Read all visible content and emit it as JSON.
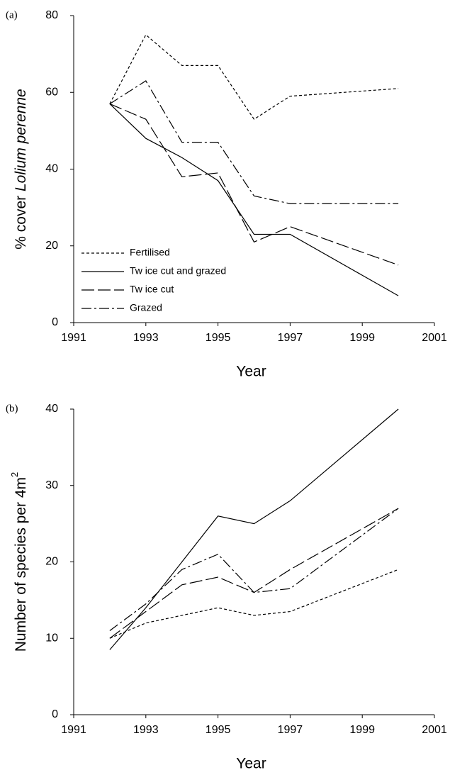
{
  "chart_data": [
    {
      "type": "line",
      "panel_label": "(a)",
      "xlabel": "Year",
      "ylabel": [
        "% cover ",
        "Lolium perenne"
      ],
      "x": [
        1992,
        1993,
        1994,
        1995,
        1996,
        1997,
        2000
      ],
      "xlim": [
        1991,
        2001
      ],
      "xticks": [
        1991,
        1993,
        1995,
        1997,
        1999,
        2001
      ],
      "ylim": [
        0,
        80
      ],
      "yticks": [
        0,
        20,
        40,
        60,
        80
      ],
      "legend": "lower left",
      "series": [
        {
          "name": "Fertilised",
          "color": "#000000",
          "dash": "4,3",
          "values": [
            57,
            75,
            67,
            67,
            53,
            59,
            61
          ]
        },
        {
          "name": "Tw ice cut and grazed",
          "color": "#000000",
          "dash": "none",
          "values": [
            57,
            48,
            43,
            37,
            23,
            23,
            7
          ]
        },
        {
          "name": "Tw ice cut",
          "color": "#000000",
          "dash": "18,5",
          "values": [
            57,
            53,
            38,
            39,
            21,
            25,
            15
          ]
        },
        {
          "name": "Grazed",
          "color": "#000000",
          "dash": "14,4,3,4",
          "values": [
            57,
            63,
            47,
            47,
            33,
            31,
            31
          ]
        }
      ]
    },
    {
      "type": "line",
      "panel_label": "(b)",
      "xlabel": "Year",
      "ylabel": [
        "Number of species per 4m",
        "2"
      ],
      "x": [
        1992,
        1993,
        1994,
        1995,
        1996,
        1997,
        2000
      ],
      "xlim": [
        1991,
        2001
      ],
      "xticks": [
        1991,
        1993,
        1995,
        1997,
        1999,
        2001
      ],
      "ylim": [
        0,
        40
      ],
      "yticks": [
        0,
        10,
        20,
        30,
        40
      ],
      "series": [
        {
          "color": "#000000",
          "dash": "4,3",
          "values": [
            10,
            12,
            13,
            14,
            13,
            13.5,
            19
          ]
        },
        {
          "color": "#000000",
          "dash": "none",
          "values": [
            8.5,
            14,
            20,
            26,
            25,
            28,
            40
          ]
        },
        {
          "color": "#000000",
          "dash": "18,5",
          "values": [
            10,
            13.5,
            17,
            18,
            16,
            19,
            27
          ]
        },
        {
          "color": "#000000",
          "dash": "14,4,3,4",
          "values": [
            11,
            14.5,
            19,
            21,
            16,
            16.5,
            27
          ]
        }
      ]
    }
  ]
}
